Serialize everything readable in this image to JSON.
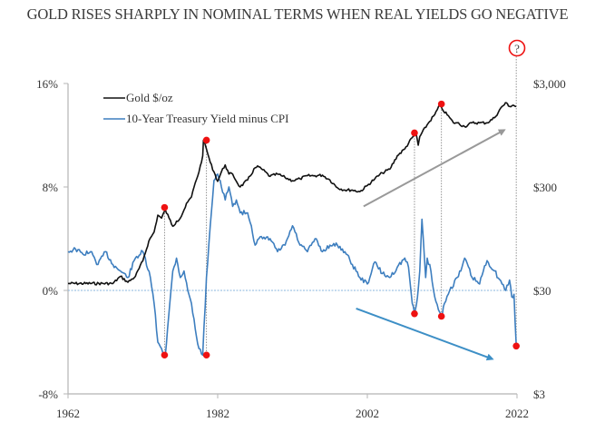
{
  "chart_data": {
    "type": "line",
    "title": "GOLD RISES SHARPLY IN NOMINAL TERMS WHEN REAL YIELDS GO NEGATIVE",
    "xlabel": "",
    "ylabel_left": "",
    "ylabel_right": "",
    "x_ticks": [
      "1962",
      "1982",
      "2002",
      "2022"
    ],
    "xlim": [
      1962,
      2022
    ],
    "y_left_ticks": [
      "16%",
      "8%",
      "0%",
      "-8%"
    ],
    "y_left_range": [
      -8,
      16
    ],
    "y_right_ticks": [
      "$3,000",
      "$300",
      "$30",
      "$3"
    ],
    "y_right_range": [
      3,
      3000
    ],
    "y_right_scale": "log",
    "grid": false,
    "legend_position": "top-left",
    "colors": {
      "gold": "#111111",
      "real_yield": "#3d7ebf",
      "marker": "#ee1111",
      "up_arrow": "#999999",
      "down_arrow": "#3d8fc6",
      "zero_line": "#8ab6dc"
    },
    "series": [
      {
        "name": "Gold $/oz",
        "axis": "right",
        "x": [
          1962,
          1968,
          1969,
          1970,
          1971,
          1972,
          1972.8,
          1973.5,
          1974,
          1974.5,
          1975,
          1975.5,
          1976,
          1976.5,
          1977,
          1977.5,
          1978,
          1978.5,
          1979,
          1979.5,
          1980,
          1980.1,
          1980.5,
          1981,
          1981.5,
          1982,
          1982.5,
          1983,
          1983.5,
          1984,
          1984.5,
          1985,
          1986,
          1987,
          1987.5,
          1988,
          1989,
          1990,
          1991,
          1992,
          1993,
          1994,
          1995,
          1996,
          1997,
          1998,
          1999,
          2000,
          2001,
          2002,
          2003,
          2004,
          2005,
          2006,
          2007,
          2008,
          2008.5,
          2008.8,
          2009,
          2010,
          2011,
          2011.7,
          2012,
          2013,
          2013.5,
          2014,
          2015,
          2016,
          2017,
          2018,
          2019,
          2020,
          2020.6,
          2021,
          2021.5,
          2021.9
        ],
        "y": [
          35,
          35,
          41,
          36,
          41,
          58,
          90,
          110,
          160,
          150,
          180,
          150,
          125,
          140,
          150,
          180,
          215,
          240,
          330,
          420,
          600,
          850,
          700,
          520,
          420,
          340,
          420,
          490,
          400,
          400,
          340,
          300,
          350,
          460,
          470,
          440,
          380,
          400,
          370,
          345,
          360,
          385,
          385,
          390,
          350,
          295,
          280,
          280,
          270,
          310,
          360,
          410,
          445,
          600,
          700,
          900,
          1000,
          760,
          920,
          1200,
          1500,
          1850,
          1700,
          1400,
          1250,
          1250,
          1150,
          1250,
          1250,
          1250,
          1400,
          1800,
          1950,
          1800,
          1850,
          1800
        ]
      },
      {
        "name": "10-Year Treasury Yield minus CPI",
        "axis": "left",
        "x": [
          1962,
          1963,
          1964,
          1965,
          1966,
          1967,
          1968,
          1969,
          1970,
          1971,
          1972,
          1973,
          1973.5,
          1974,
          1974.5,
          1975,
          1975.3,
          1976,
          1976.5,
          1977,
          1977.5,
          1978,
          1978.5,
          1979,
          1979.5,
          1980,
          1980.5,
          1981,
          1981.5,
          1982,
          1982.5,
          1983,
          1983.5,
          1984,
          1984.5,
          1985,
          1986,
          1986.5,
          1987,
          1987.5,
          1988,
          1989,
          1990,
          1991,
          1992,
          1993,
          1994,
          1995,
          1996,
          1997,
          1998,
          1999,
          2000,
          2001,
          2002,
          2003,
          2004,
          2005,
          2006,
          2007,
          2007.5,
          2008,
          2008.3,
          2008.7,
          2009,
          2009.3,
          2009.8,
          2010,
          2010.5,
          2011,
          2011.5,
          2011.9,
          2012.3,
          2013,
          2014,
          2014.5,
          2015,
          2016,
          2017,
          2017.5,
          2018,
          2019,
          2020,
          2020.5,
          2021,
          2021.3,
          2021.6,
          2021.9
        ],
        "y": [
          3,
          3.2,
          2.8,
          3,
          2,
          3,
          2,
          1.5,
          1,
          2.5,
          3,
          1,
          -1,
          -4,
          -4.5,
          -5,
          -3,
          1.5,
          2.5,
          1,
          1.5,
          0,
          -1,
          -3,
          -4.5,
          -5,
          1,
          5,
          8.5,
          9,
          8,
          7,
          8,
          6.5,
          7,
          6,
          6,
          5,
          3.5,
          4,
          4,
          4,
          3,
          3.5,
          5,
          3.5,
          3,
          4,
          3,
          3.5,
          3.5,
          3,
          2,
          1,
          0.5,
          2.2,
          1.3,
          1,
          1.8,
          2.5,
          1.8,
          -1,
          -1.8,
          -0.5,
          1.5,
          5.5,
          1,
          2.5,
          1.5,
          -0.5,
          -1.5,
          -2,
          -1,
          0,
          1,
          1.5,
          2.5,
          1,
          0.5,
          1.5,
          2.3,
          1.5,
          0.5,
          0,
          0.8,
          -0.5,
          -0.3,
          -4.3
        ]
      }
    ],
    "annotations": {
      "highlighted_points": [
        {
          "year": 1974.9,
          "series": "Gold $/oz",
          "value": 190
        },
        {
          "year": 1974.9,
          "series": "10-Year Treasury Yield minus CPI",
          "value": -5
        },
        {
          "year": 1980.5,
          "series": "Gold $/oz",
          "value": 850
        },
        {
          "year": 1980.5,
          "series": "10-Year Treasury Yield minus CPI",
          "value": -5
        },
        {
          "year": 2008.3,
          "series": "Gold $/oz",
          "value": 1000
        },
        {
          "year": 2008.3,
          "series": "10-Year Treasury Yield minus CPI",
          "value": -1.8
        },
        {
          "year": 2011.9,
          "series": "Gold $/oz",
          "value": 1900
        },
        {
          "year": 2011.9,
          "series": "10-Year Treasury Yield minus CPI",
          "value": -2
        },
        {
          "year": 2021.9,
          "series": "10-Year Treasury Yield minus CPI",
          "value": -4.3
        }
      ],
      "question_marker": "?",
      "trend_arrows": [
        {
          "name": "gold-uptrend",
          "from": [
            2001.5,
            6.5
          ],
          "to": [
            2020.3,
            12.4
          ],
          "unit": "pct_axis"
        },
        {
          "name": "yield-downtrend",
          "from": [
            2000.5,
            -1.4
          ],
          "to": [
            2018.7,
            -5.3
          ],
          "unit": "pct_axis"
        }
      ]
    }
  }
}
